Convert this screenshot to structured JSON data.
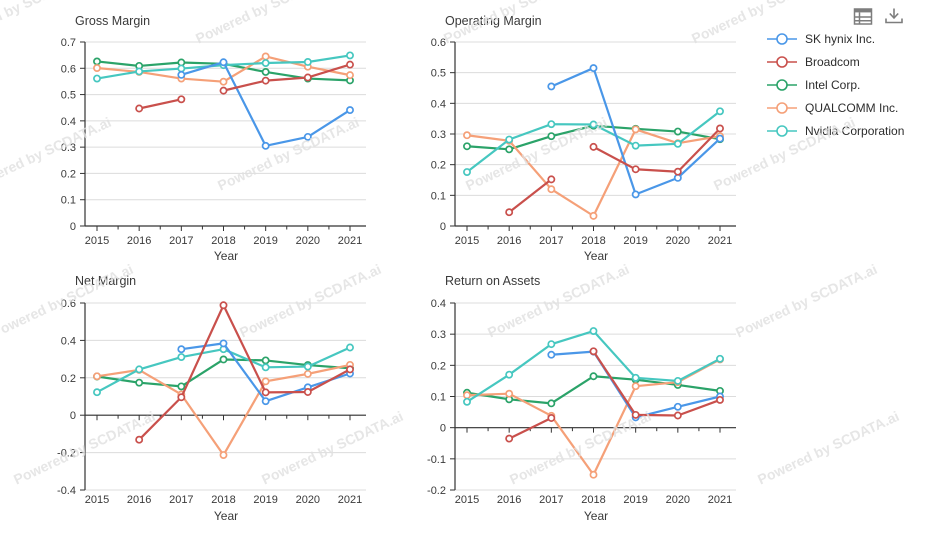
{
  "watermark": {
    "text": "Powered by SCDATA.ai"
  },
  "toolbar": {
    "icons": [
      {
        "name": "data-table-icon"
      },
      {
        "name": "download-icon"
      }
    ]
  },
  "legend": {
    "position": "right",
    "items": [
      {
        "label": "SK hynix Inc.",
        "color": "#4a97e8"
      },
      {
        "label": "Broadcom",
        "color": "#c9504c"
      },
      {
        "label": "Intel Corp.",
        "color": "#2ba369"
      },
      {
        "label": "QUALCOMM Inc.",
        "color": "#f5a078"
      },
      {
        "label": "Nvidia Corporation",
        "color": "#46c7c0"
      }
    ]
  },
  "years": [
    2015,
    2016,
    2017,
    2018,
    2019,
    2020,
    2021
  ],
  "chart_data": [
    {
      "type": "line",
      "title": "Gross Margin",
      "xlabel": "Year",
      "ylim": [
        0,
        0.7
      ],
      "yticks": [
        0,
        0.1,
        0.2,
        0.3,
        0.4,
        0.5,
        0.6,
        0.7
      ],
      "grid": true,
      "series": [
        {
          "name": "SK hynix Inc.",
          "color": "#4a97e8",
          "values": [
            null,
            null,
            0.575,
            0.623,
            0.305,
            0.339,
            0.441
          ],
          "gaps": []
        },
        {
          "name": "Broadcom",
          "color": "#c9504c",
          "values": [
            null,
            0.447,
            0.482,
            0.515,
            0.553,
            0.565,
            0.614
          ],
          "gaps": [
            2017
          ]
        },
        {
          "name": "Intel Corp.",
          "color": "#2ba369",
          "values": [
            0.626,
            0.609,
            0.622,
            0.617,
            0.586,
            0.561,
            0.554
          ],
          "gaps": []
        },
        {
          "name": "QUALCOMM Inc.",
          "color": "#f5a078",
          "values": [
            0.601,
            0.586,
            0.561,
            0.549,
            0.645,
            0.606,
            0.574
          ],
          "gaps": []
        },
        {
          "name": "Nvidia Corporation",
          "color": "#46c7c0",
          "values": [
            0.561,
            0.588,
            0.599,
            0.612,
            0.62,
            0.624,
            0.649
          ],
          "gaps": []
        }
      ]
    },
    {
      "type": "line",
      "title": "Operating Margin",
      "xlabel": "Year",
      "ylim": [
        0,
        0.6
      ],
      "yticks": [
        0,
        0.1,
        0.2,
        0.3,
        0.4,
        0.5,
        0.6
      ],
      "grid": true,
      "series": [
        {
          "name": "SK hynix Inc.",
          "color": "#4a97e8",
          "values": [
            null,
            null,
            0.455,
            0.515,
            0.103,
            0.157,
            0.285
          ],
          "gaps": []
        },
        {
          "name": "Broadcom",
          "color": "#c9504c",
          "values": [
            null,
            0.045,
            0.152,
            0.258,
            0.185,
            0.177,
            0.318
          ],
          "gaps": [
            2017
          ]
        },
        {
          "name": "Intel Corp.",
          "color": "#2ba369",
          "values": [
            0.26,
            0.25,
            0.293,
            0.327,
            0.317,
            0.308,
            0.283
          ],
          "gaps": []
        },
        {
          "name": "QUALCOMM Inc.",
          "color": "#f5a078",
          "values": [
            0.296,
            0.278,
            0.12,
            0.033,
            0.315,
            0.27,
            0.293
          ],
          "gaps": []
        },
        {
          "name": "Nvidia Corporation",
          "color": "#46c7c0",
          "values": [
            0.176,
            0.282,
            0.332,
            0.331,
            0.262,
            0.268,
            0.374
          ],
          "gaps": []
        }
      ]
    },
    {
      "type": "line",
      "title": "Net Margin",
      "xlabel": "Year",
      "ylim": [
        -0.4,
        0.6
      ],
      "yticks": [
        -0.4,
        -0.2,
        0,
        0.2,
        0.4,
        0.6
      ],
      "grid": true,
      "series": [
        {
          "name": "SK hynix Inc.",
          "color": "#4a97e8",
          "values": [
            null,
            null,
            0.353,
            0.384,
            0.075,
            0.149,
            0.223
          ],
          "gaps": []
        },
        {
          "name": "Broadcom",
          "color": "#c9504c",
          "values": [
            null,
            -0.131,
            0.096,
            0.588,
            0.122,
            0.124,
            0.245
          ],
          "gaps": []
        },
        {
          "name": "Intel Corp.",
          "color": "#2ba369",
          "values": [
            0.207,
            0.174,
            0.154,
            0.298,
            0.293,
            0.268,
            0.251
          ],
          "gaps": []
        },
        {
          "name": "QUALCOMM Inc.",
          "color": "#f5a078",
          "values": [
            0.208,
            0.242,
            0.111,
            -0.213,
            0.181,
            0.221,
            0.269
          ],
          "gaps": []
        },
        {
          "name": "Nvidia Corporation",
          "color": "#46c7c0",
          "values": [
            0.123,
            0.245,
            0.311,
            0.353,
            0.256,
            0.26,
            0.362
          ],
          "gaps": []
        }
      ]
    },
    {
      "type": "line",
      "title": "Return on Assets",
      "xlabel": "Year",
      "ylim": [
        -0.2,
        0.4
      ],
      "yticks": [
        -0.2,
        -0.1,
        0,
        0.1,
        0.2,
        0.3,
        0.4
      ],
      "grid": true,
      "series": [
        {
          "name": "SK hynix Inc.",
          "color": "#4a97e8",
          "values": [
            null,
            null,
            0.234,
            0.244,
            0.033,
            0.067,
            0.1
          ],
          "gaps": []
        },
        {
          "name": "Broadcom",
          "color": "#c9504c",
          "values": [
            null,
            -0.035,
            0.031,
            0.245,
            0.041,
            0.039,
            0.089
          ],
          "gaps": [
            2017
          ]
        },
        {
          "name": "Intel Corp.",
          "color": "#2ba369",
          "values": [
            0.112,
            0.091,
            0.078,
            0.165,
            0.154,
            0.137,
            0.118
          ],
          "gaps": []
        },
        {
          "name": "QUALCOMM Inc.",
          "color": "#f5a078",
          "values": [
            0.104,
            0.109,
            0.038,
            -0.151,
            0.133,
            0.146,
            0.219
          ],
          "gaps": []
        },
        {
          "name": "Nvidia Corporation",
          "color": "#46c7c0",
          "values": [
            0.083,
            0.17,
            0.268,
            0.31,
            0.16,
            0.15,
            0.221
          ],
          "gaps": []
        }
      ]
    }
  ]
}
